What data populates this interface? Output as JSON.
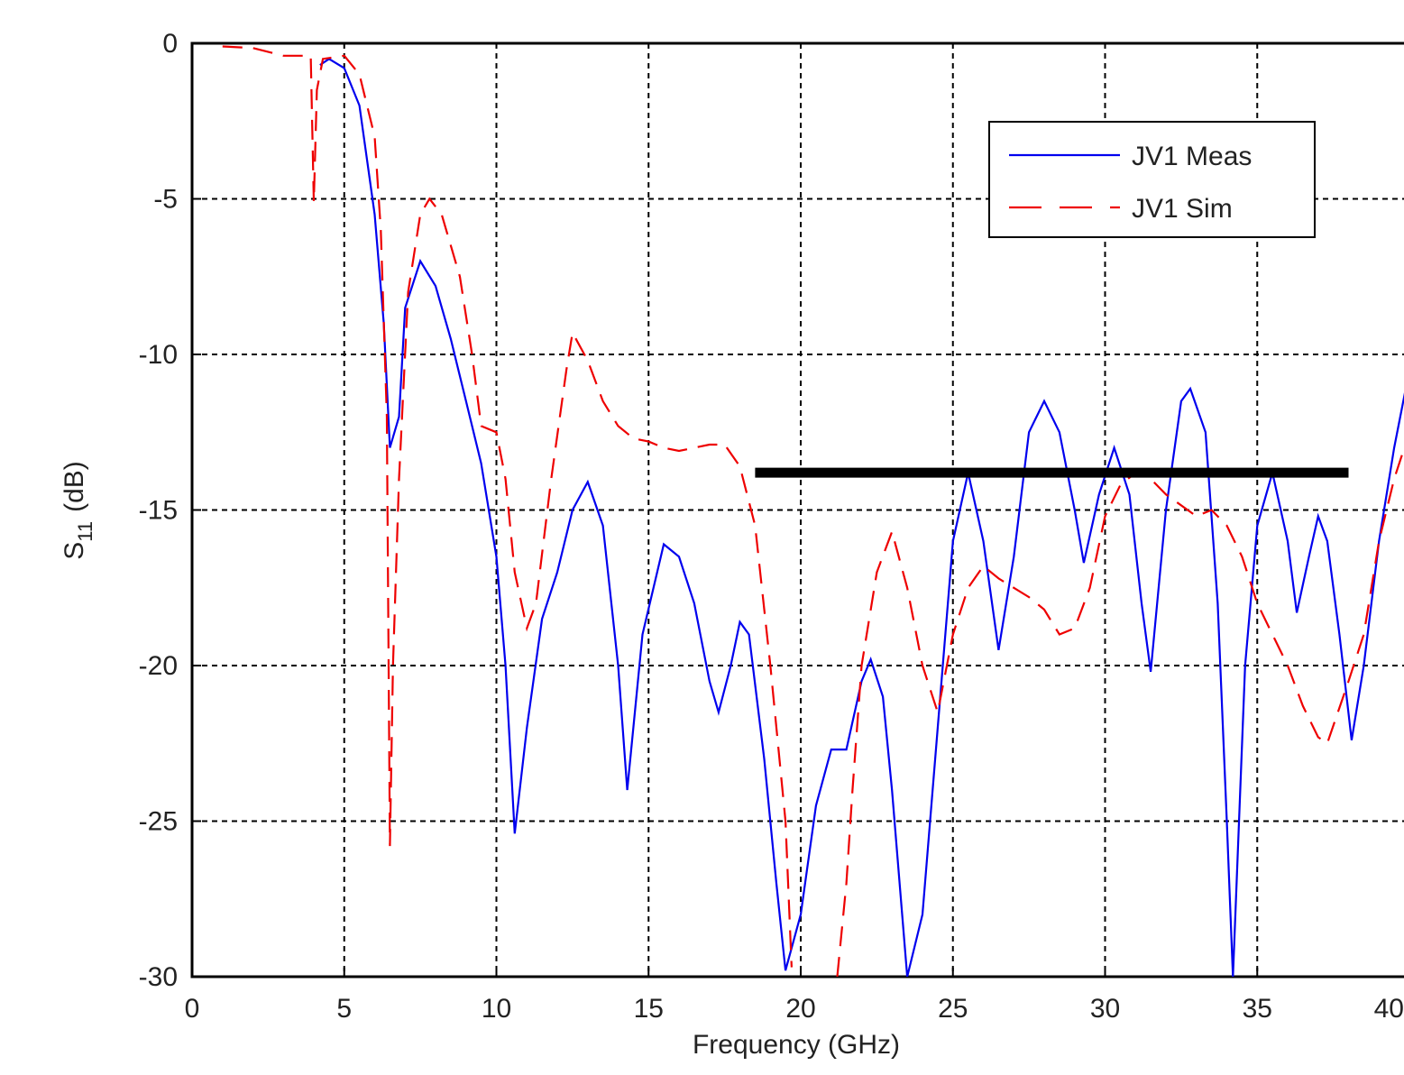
{
  "chart_data": {
    "type": "line",
    "xlabel": "Frequency (GHz)",
    "ylabel": [
      "S",
      "11",
      "(dB)"
    ],
    "xlim": [
      0,
      40
    ],
    "xticks": [
      0,
      5,
      10,
      15,
      20,
      25,
      30,
      35,
      40
    ],
    "ylim": [
      -30,
      0
    ],
    "yticks": [
      0,
      -5,
      -10,
      -15,
      -20,
      -25,
      -30
    ],
    "grid": true,
    "legend": "upper right",
    "series": [
      {
        "name": "JV1 Meas",
        "color": "#0000ee",
        "dash": "solid",
        "x": [
          4.2,
          4.5,
          5,
          5.5,
          6,
          6.3,
          6.5,
          6.8,
          7,
          7.5,
          8,
          8.5,
          9,
          9.5,
          10,
          10.3,
          10.6,
          11,
          11.5,
          12,
          12.5,
          13,
          13.5,
          14,
          14.3,
          14.8,
          15.5,
          16,
          16.5,
          17,
          17.3,
          17.7,
          18,
          18.3,
          18.8,
          19.2,
          19.5,
          20,
          20.5,
          21,
          21.5,
          22,
          22.3,
          22.7,
          23,
          23.5,
          24,
          24.5,
          25,
          25.5,
          26,
          26.5,
          27,
          27.5,
          28,
          28.5,
          29,
          29.3,
          29.8,
          30.3,
          30.8,
          31.2,
          31.5,
          32,
          32.5,
          32.8,
          33.3,
          33.7,
          34,
          34.2,
          34.6,
          35,
          35.5,
          36,
          36.3,
          36.7,
          37,
          37.3,
          37.7,
          38.1,
          38.5,
          39,
          39.5,
          40
        ],
        "values": [
          -0.7,
          -0.5,
          -0.8,
          -2,
          -5.5,
          -9,
          -13,
          -12,
          -8.5,
          -7,
          -7.8,
          -9.5,
          -11.5,
          -13.5,
          -16.5,
          -20,
          -25.4,
          -22,
          -18.5,
          -17,
          -15,
          -14.1,
          -15.5,
          -20,
          -24,
          -19,
          -16.1,
          -16.5,
          -18,
          -20.5,
          -21.5,
          -20,
          -18.6,
          -19,
          -23,
          -27,
          -29.8,
          -28,
          -24.5,
          -22.7,
          -22.7,
          -20.5,
          -19.8,
          -21,
          -24,
          -30,
          -28,
          -22,
          -16,
          -13.8,
          -16,
          -19.5,
          -16.5,
          -12.5,
          -11.5,
          -12.5,
          -15,
          -16.7,
          -14.5,
          -13,
          -14.5,
          -18,
          -20.2,
          -15,
          -11.5,
          -11.1,
          -12.5,
          -18,
          -25,
          -30,
          -20,
          -15.5,
          -13.8,
          -16,
          -18.3,
          -16.5,
          -15.2,
          -16,
          -19,
          -22.4,
          -20,
          -16,
          -13,
          -10.5
        ]
      },
      {
        "name": "JV1 Sim",
        "color": "#ee0000",
        "dash": "dashed",
        "x": [
          1,
          2,
          3,
          3.9,
          4,
          4.1,
          4.3,
          5,
          5.5,
          6,
          6.2,
          6.4,
          6.5,
          6.6,
          6.8,
          7.1,
          7.5,
          7.8,
          8.2,
          8.8,
          9.2,
          9.5,
          10,
          10.3,
          10.6,
          11,
          11.3,
          11.8,
          12.3,
          12.5,
          13,
          13.5,
          14,
          14.5,
          15,
          15.5,
          16,
          16.5,
          17,
          17.5,
          18,
          18.5,
          19,
          19.5,
          19.7,
          20,
          21,
          21.2,
          21.5,
          21.7,
          22,
          22.5,
          23,
          23.5,
          24,
          24.5,
          25,
          25.5,
          26,
          26.5,
          27.5,
          28,
          28.5,
          29,
          29.5,
          30,
          30.5,
          31,
          31.5,
          32,
          33,
          33.5,
          34,
          34.5,
          35,
          35.5,
          36,
          36.5,
          37,
          37.3,
          38,
          38.5,
          39,
          39.5,
          40
        ],
        "values": [
          -0.1,
          -0.15,
          -0.4,
          -0.4,
          -5.1,
          -1.5,
          -0.5,
          -0.4,
          -1,
          -3,
          -6,
          -12,
          -25.8,
          -20,
          -14,
          -8,
          -5.5,
          -5,
          -5.5,
          -7.5,
          -10,
          -12.3,
          -12.5,
          -14,
          -17,
          -18.8,
          -18,
          -14,
          -10.5,
          -9.3,
          -10.2,
          -11.5,
          -12.3,
          -12.7,
          -12.8,
          -13,
          -13.1,
          -13,
          -12.9,
          -12.9,
          -13.6,
          -15.5,
          -20,
          -25,
          -29.7,
          null,
          null,
          -30,
          -27,
          -24,
          -20,
          -17,
          -15.7,
          -17.5,
          -20,
          -21.5,
          -19,
          -17.5,
          -16.8,
          -17.2,
          -17.8,
          -18.2,
          -19,
          -18.8,
          -17.5,
          -15.2,
          -14.2,
          -13.8,
          -14,
          -14.5,
          -15.2,
          -15,
          -15.5,
          -16.5,
          -18,
          -19,
          -20,
          -21.3,
          -22.3,
          -22.5,
          -20.5,
          -19,
          -16,
          -14,
          -12.5
        ]
      }
    ],
    "reference_line": {
      "x": [
        18.5,
        38
      ],
      "values": [
        -13.8,
        -13.8
      ],
      "color": "#000000"
    }
  }
}
